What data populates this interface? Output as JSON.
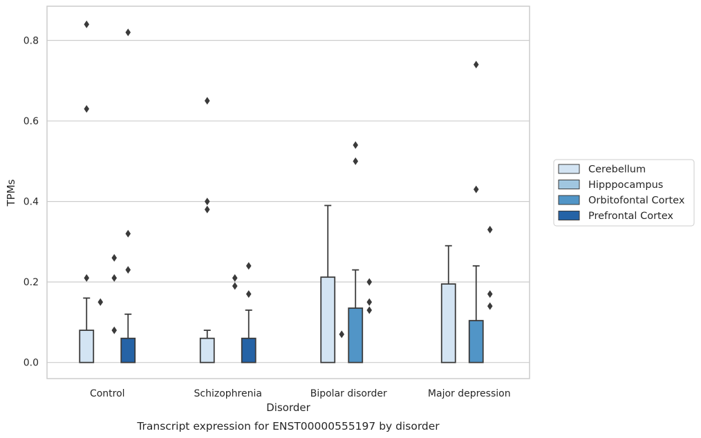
{
  "chart_data": {
    "type": "bar",
    "categories": [
      "Control",
      "Schizophrenia",
      "Bipolar disorder",
      "Major depression"
    ],
    "xlabel": "Disorder",
    "ylabel": "TPMs",
    "caption": "Transcript expression for ENST00000555197 by disorder",
    "ylim": [
      -0.04,
      0.885
    ],
    "yticks": [
      0.0,
      0.2,
      0.4,
      0.6,
      0.8
    ],
    "ytick_labels": [
      "0.0",
      "0.2",
      "0.4",
      "0.6",
      "0.8"
    ],
    "grid": "horizontal",
    "legend_position": "right",
    "series": [
      {
        "name": "Cerebellum",
        "color": "#d3e4f3",
        "values": [
          0.08,
          0.06,
          0.212,
          0.195
        ],
        "whisker_high": [
          0.16,
          0.08,
          0.39,
          0.29
        ],
        "outliers": [
          [
            0.21,
            0.63,
            0.84
          ],
          [
            0.38,
            0.4,
            0.65
          ],
          [],
          []
        ]
      },
      {
        "name": "Hipppocampus",
        "color": "#a0c6e0",
        "values": [
          0.0,
          0.0,
          0.0,
          0.0
        ],
        "whisker_high": [
          null,
          null,
          null,
          null
        ],
        "outliers": [
          [
            0.15
          ],
          [],
          [
            0.07
          ],
          []
        ]
      },
      {
        "name": "Orbitofontal Cortex",
        "color": "#5195c7",
        "values": [
          0.0,
          0.0,
          0.135,
          0.104
        ],
        "whisker_high": [
          null,
          null,
          0.23,
          0.24
        ],
        "outliers": [
          [
            0.08,
            0.21,
            0.26
          ],
          [
            0.19,
            0.21
          ],
          [
            0.5,
            0.54
          ],
          [
            0.43,
            0.74
          ]
        ]
      },
      {
        "name": "Prefrontal Cortex",
        "color": "#2563a6",
        "values": [
          0.06,
          0.06,
          0.0,
          0.0
        ],
        "whisker_high": [
          0.12,
          0.13,
          null,
          null
        ],
        "outliers": [
          [
            0.23,
            0.32,
            0.82
          ],
          [
            0.17,
            0.24
          ],
          [
            0.13,
            0.15,
            0.2
          ],
          [
            0.14,
            0.17,
            0.33
          ]
        ]
      }
    ]
  }
}
